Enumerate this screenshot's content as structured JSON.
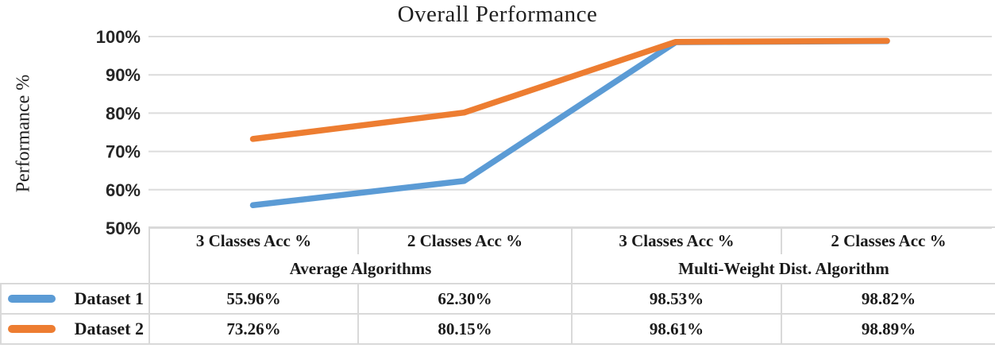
{
  "colors": {
    "series1": "#5B9BD5",
    "series2": "#ED7D31",
    "gridline": "#DCDCDC",
    "table_border": "#D9D9D9",
    "text": "#1f1f1f"
  },
  "chart_data": {
    "type": "line",
    "title": "Overall Performance",
    "xlabel": "",
    "ylabel": "Performance %",
    "ylim": [
      50,
      100
    ],
    "grid": true,
    "yticks": [
      100,
      90,
      80,
      70,
      60,
      50
    ],
    "ytick_labels": [
      "100%",
      "90%",
      "80%",
      "70%",
      "60%",
      "50%"
    ],
    "categories": [
      "3 Classes Acc %",
      "2 Classes Acc %",
      "3 Classes Acc %",
      "2 Classes Acc %"
    ],
    "category_groups": [
      "Average Algorithms",
      "Multi-Weight Dist. Algorithm"
    ],
    "legend_position": "table-left",
    "series": [
      {
        "name": "Dataset 1",
        "color": "#5B9BD5",
        "values": [
          55.96,
          62.3,
          98.53,
          98.82
        ]
      },
      {
        "name": "Dataset 2",
        "color": "#ED7D31",
        "values": [
          73.26,
          80.15,
          98.61,
          98.89
        ]
      }
    ]
  },
  "table": {
    "column_headers": [
      "3 Classes Acc %",
      "2 Classes Acc %",
      "3 Classes Acc %",
      "2 Classes Acc %"
    ],
    "group_headers": [
      "Average Algorithms",
      "Multi-Weight Dist. Algorithm"
    ],
    "rows": [
      {
        "legend": "Dataset 1",
        "values": [
          "55.96%",
          "62.30%",
          "98.53%",
          "98.82%"
        ]
      },
      {
        "legend": "Dataset 2",
        "values": [
          "73.26%",
          "80.15%",
          "98.61%",
          "98.89%"
        ]
      }
    ]
  }
}
